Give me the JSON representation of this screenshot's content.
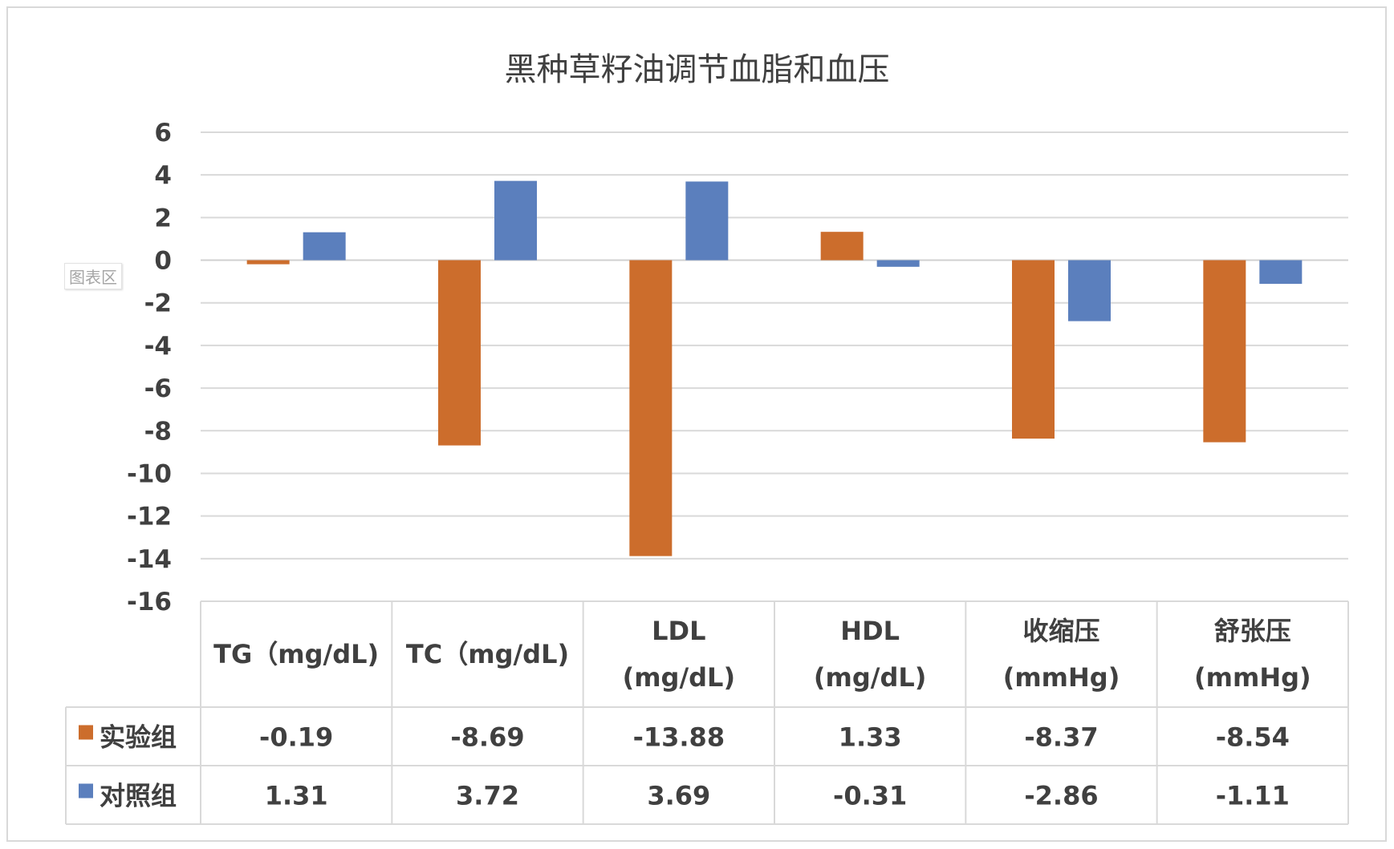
{
  "chart_data": {
    "type": "bar",
    "title": "黑种草籽油调节血脂和血压",
    "chart_area_label": "图表区",
    "categories": [
      [
        "TG（mg/dL)"
      ],
      [
        "TC（mg/dL)"
      ],
      [
        "LDL",
        "(mg/dL)"
      ],
      [
        "HDL",
        "(mg/dL)"
      ],
      [
        "收缩压",
        "(mmHg)"
      ],
      [
        "舒张压",
        "(mmHg)"
      ]
    ],
    "series": [
      {
        "name": "实验组",
        "color": "#cc6d2c",
        "values": [
          -0.19,
          -8.69,
          -13.88,
          1.33,
          -8.37,
          -8.54
        ]
      },
      {
        "name": "对照组",
        "color": "#5b7fbd",
        "values": [
          1.31,
          3.72,
          3.69,
          -0.31,
          -2.86,
          -1.11
        ]
      }
    ],
    "ylim": [
      -16,
      6
    ],
    "ytick_step": 2,
    "grid": true,
    "legend": "data-table",
    "data_table": true
  }
}
